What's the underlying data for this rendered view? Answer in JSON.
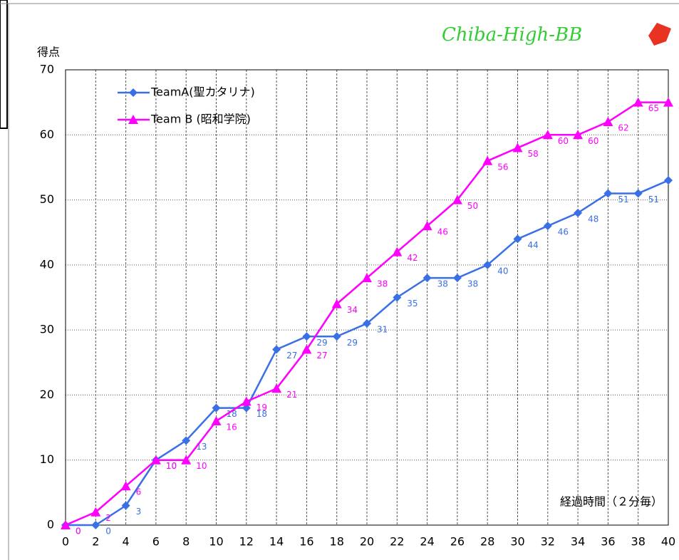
{
  "chart_data": {
    "type": "line",
    "logo": "Chiba-High-BB",
    "y_label": "得点",
    "x_label": "経過時間（２分毎）",
    "x": [
      0,
      2,
      4,
      6,
      8,
      10,
      12,
      14,
      16,
      18,
      20,
      22,
      24,
      26,
      28,
      30,
      32,
      34,
      36,
      38,
      40
    ],
    "series": [
      {
        "name": "TeamA(聖カタリナ)",
        "color": "#3a6fe6",
        "marker": "diamond",
        "values": [
          0,
          0,
          3,
          10,
          13,
          18,
          18,
          27,
          29,
          29,
          31,
          35,
          38,
          38,
          40,
          44,
          46,
          48,
          51,
          51,
          53
        ]
      },
      {
        "name": "Team B (昭和学院)",
        "color": "#ff00ff",
        "marker": "triangle",
        "values": [
          0,
          2,
          6,
          10,
          10,
          16,
          19,
          21,
          27,
          34,
          38,
          42,
          46,
          50,
          56,
          58,
          60,
          60,
          62,
          65,
          65
        ]
      }
    ],
    "xlim": [
      0,
      40
    ],
    "ylim": [
      0,
      70
    ],
    "xticks": [
      0,
      2,
      4,
      6,
      8,
      10,
      12,
      14,
      16,
      18,
      20,
      22,
      24,
      26,
      28,
      30,
      32,
      34,
      36,
      38,
      40
    ],
    "yticks": [
      0,
      10,
      20,
      30,
      40,
      50,
      60,
      70
    ],
    "grid": true,
    "legend": "upper-left"
  }
}
